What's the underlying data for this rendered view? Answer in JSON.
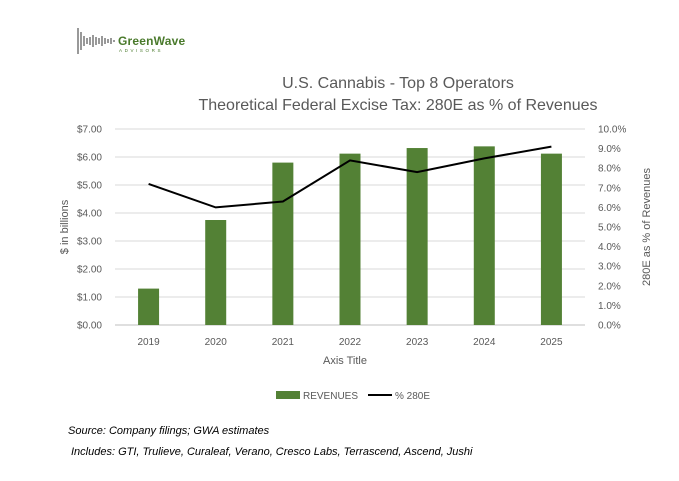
{
  "logo": {
    "name": "GreenWave",
    "tagline": "ADVISORS",
    "icon": "wave-bars-logo"
  },
  "chart_data": {
    "type": "bar+line",
    "title": "U.S. Cannabis - Top 8 Operators",
    "subtitle": "Theoretical Federal Excise Tax: 280E as % of Revenues",
    "xlabel": "Axis Title",
    "ylabel": "$ in billions",
    "y2label": "280E as % of Revenues",
    "categories": [
      "2019",
      "2020",
      "2021",
      "2022",
      "2023",
      "2024",
      "2025"
    ],
    "ylim": [
      0,
      7
    ],
    "y_ticks": [
      "$0.00",
      "$1.00",
      "$2.00",
      "$3.00",
      "$4.00",
      "$5.00",
      "$6.00",
      "$7.00"
    ],
    "y2lim": [
      0,
      10
    ],
    "y2_ticks": [
      "0.0%",
      "1.0%",
      "2.0%",
      "3.0%",
      "4.0%",
      "5.0%",
      "6.0%",
      "7.0%",
      "8.0%",
      "9.0%",
      "10.0%"
    ],
    "grid": true,
    "legend_position": "bottom",
    "series": [
      {
        "name": "REVENUES",
        "type": "bar",
        "axis": "left",
        "color": "#538135",
        "values": [
          1.3,
          3.75,
          5.8,
          6.12,
          6.32,
          6.38,
          6.12
        ]
      },
      {
        "name": "% 280E",
        "type": "line",
        "axis": "right",
        "color": "#000000",
        "values": [
          7.2,
          6.0,
          6.3,
          8.4,
          7.8,
          8.5,
          9.1
        ]
      }
    ]
  },
  "notes": {
    "source": "Source: Company filings; GWA estimates",
    "includes": "Includes: GTI, Trulieve, Curaleaf, Verano, Cresco Labs, Terrascend, Ascend, Jushi"
  }
}
